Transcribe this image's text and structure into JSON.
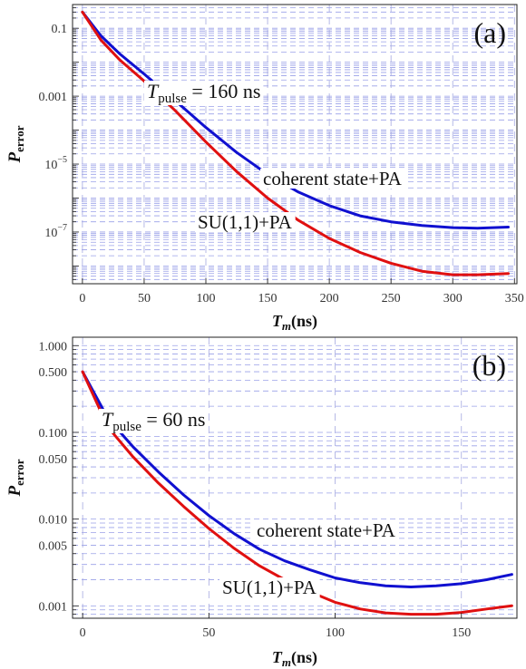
{
  "chart_data": [
    {
      "type": "line",
      "panel_label": "(a)",
      "ylabel_main": "P",
      "ylabel_sub": "error",
      "xlabel_main": "T",
      "xlabel_sub": "m",
      "xlabel_unit": "(ns)",
      "xlim": [
        -8,
        352
      ],
      "ylog": true,
      "ylim": [
        3e-09,
        0.5
      ],
      "x_ticks": [
        0,
        50,
        100,
        150,
        200,
        250,
        300,
        350
      ],
      "x_tick_labels": [
        "0",
        "50",
        "100",
        "150",
        "200",
        "250",
        "300",
        "350"
      ],
      "y_ticks": [
        0.1,
        0.001,
        1e-05,
        1e-07
      ],
      "y_tick_labels": [
        {
          "base": "0.1",
          "exp": ""
        },
        {
          "base": "0.001",
          "exp": ""
        },
        {
          "base": "10",
          "exp": "−5"
        },
        {
          "base": "10",
          "exp": "−7"
        }
      ],
      "grid": true,
      "annotation": {
        "main": "T",
        "sub": "pulse",
        "rest": " = 160 ns"
      },
      "series": [
        {
          "name": "coherent state+PA",
          "color": "#1010d0",
          "x": [
            0,
            15,
            30,
            50,
            75,
            100,
            125,
            150,
            175,
            200,
            225,
            250,
            275,
            300,
            320,
            345
          ],
          "y": [
            0.3,
            0.06,
            0.018,
            0.0045,
            0.00075,
            0.00012,
            2.2e-05,
            5e-06,
            1.5e-06,
            6e-07,
            3e-07,
            2e-07,
            1.55e-07,
            1.35e-07,
            1.3e-07,
            1.4e-07
          ]
        },
        {
          "name": "SU(1,1)+PA",
          "color": "#e01010",
          "x": [
            0,
            15,
            30,
            50,
            75,
            100,
            125,
            150,
            175,
            200,
            225,
            250,
            275,
            300,
            320,
            345
          ],
          "y": [
            0.3,
            0.045,
            0.012,
            0.0028,
            0.00038,
            4.5e-05,
            6e-06,
            1e-06,
            2.2e-07,
            6.5e-08,
            2.5e-08,
            1.2e-08,
            7e-09,
            5.5e-09,
            5.5e-09,
            6e-09
          ]
        }
      ]
    },
    {
      "type": "line",
      "panel_label": "(b)",
      "ylabel_main": "P",
      "ylabel_sub": "error",
      "xlabel_main": "T",
      "xlabel_sub": "m",
      "xlabel_unit": "(ns)",
      "xlim": [
        -4,
        172
      ],
      "ylog": true,
      "ylim": [
        0.00072,
        1.25
      ],
      "x_ticks": [
        0,
        50,
        100,
        150
      ],
      "x_tick_labels": [
        "0",
        "50",
        "100",
        "150"
      ],
      "y_ticks": [
        1,
        0.5,
        0.1,
        0.05,
        0.01,
        0.005,
        0.001
      ],
      "y_tick_labels": [
        {
          "base": "1.000",
          "exp": ""
        },
        {
          "base": "0.500",
          "exp": ""
        },
        {
          "base": "0.100",
          "exp": ""
        },
        {
          "base": "0.050",
          "exp": ""
        },
        {
          "base": "0.010",
          "exp": ""
        },
        {
          "base": "0.005",
          "exp": ""
        },
        {
          "base": "0.001",
          "exp": ""
        }
      ],
      "grid": true,
      "annotation": {
        "main": "T",
        "sub": "pulse",
        "rest": " = 60 ns"
      },
      "series": [
        {
          "name": "coherent state+PA",
          "color": "#1010d0",
          "x": [
            0,
            10,
            20,
            30,
            40,
            50,
            60,
            70,
            80,
            90,
            100,
            110,
            120,
            130,
            140,
            150,
            160,
            170
          ],
          "y": [
            0.5,
            0.145,
            0.068,
            0.035,
            0.019,
            0.011,
            0.0068,
            0.0045,
            0.0033,
            0.0026,
            0.0021,
            0.00185,
            0.0017,
            0.00165,
            0.0017,
            0.0018,
            0.002,
            0.0023
          ]
        },
        {
          "name": "SU(1,1)+PA",
          "color": "#e01010",
          "x": [
            0,
            10,
            20,
            30,
            40,
            50,
            60,
            70,
            80,
            90,
            100,
            110,
            120,
            130,
            140,
            150,
            160,
            170
          ],
          "y": [
            0.5,
            0.115,
            0.052,
            0.026,
            0.014,
            0.0078,
            0.0046,
            0.0029,
            0.002,
            0.00145,
            0.0011,
            0.00092,
            0.00083,
            0.0008,
            0.0008,
            0.00084,
            0.00092,
            0.001
          ]
        }
      ]
    }
  ]
}
